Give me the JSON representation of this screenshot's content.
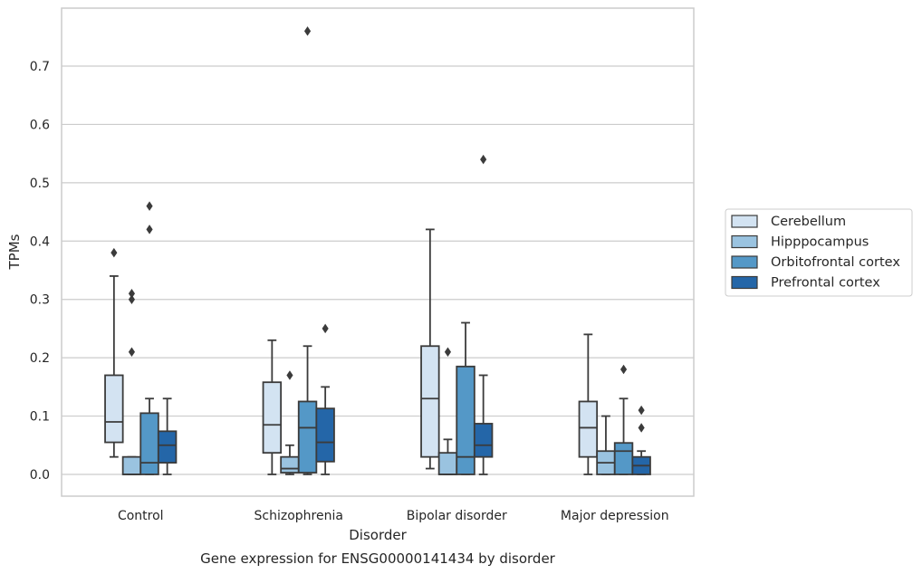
{
  "chart_data": {
    "type": "box",
    "title": "",
    "caption": "Gene expression for ENSG00000141434 by disorder",
    "xlabel": "Disorder",
    "ylabel": "TPMs",
    "ylim": [
      -0.037,
      0.8
    ],
    "yticks": [
      "0.0",
      "0.1",
      "0.2",
      "0.3",
      "0.4",
      "0.5",
      "0.6",
      "0.7"
    ],
    "ytick_values": [
      0.0,
      0.1,
      0.2,
      0.3,
      0.4,
      0.5,
      0.6,
      0.7
    ],
    "grid": "horizontal",
    "legend_position": "right",
    "categories": [
      "Control",
      "Schizophrenia",
      "Bipolar disorder",
      "Major depression"
    ],
    "series": [
      {
        "name": "Cerebellum",
        "color": "#d3e3f2",
        "boxes": [
          {
            "whislo": 0.03,
            "q1": 0.055,
            "med": 0.09,
            "q3": 0.17,
            "whishi": 0.34,
            "fliers": [
              0.38
            ]
          },
          {
            "whislo": 0.0,
            "q1": 0.037,
            "med": 0.085,
            "q3": 0.158,
            "whishi": 0.23,
            "fliers": []
          },
          {
            "whislo": 0.01,
            "q1": 0.03,
            "med": 0.13,
            "q3": 0.22,
            "whishi": 0.42,
            "fliers": []
          },
          {
            "whislo": 0.0,
            "q1": 0.03,
            "med": 0.08,
            "q3": 0.125,
            "whishi": 0.24,
            "fliers": []
          }
        ]
      },
      {
        "name": "Hipppocampus",
        "color": "#9ac3e0",
        "boxes": [
          {
            "whislo": 0.0,
            "q1": 0.0,
            "med": 0.0,
            "q3": 0.03,
            "whishi": 0.03,
            "fliers": [
              0.21,
              0.3,
              0.31
            ]
          },
          {
            "whislo": 0.0,
            "q1": 0.003,
            "med": 0.01,
            "q3": 0.03,
            "whishi": 0.05,
            "fliers": [
              0.17
            ]
          },
          {
            "whislo": 0.0,
            "q1": 0.0,
            "med": 0.0,
            "q3": 0.037,
            "whishi": 0.06,
            "fliers": [
              0.21
            ]
          },
          {
            "whislo": 0.0,
            "q1": 0.0,
            "med": 0.02,
            "q3": 0.04,
            "whishi": 0.1,
            "fliers": []
          }
        ]
      },
      {
        "name": "Orbitofrontal cortex",
        "color": "#5498c7",
        "boxes": [
          {
            "whislo": 0.0,
            "q1": 0.0,
            "med": 0.02,
            "q3": 0.105,
            "whishi": 0.13,
            "fliers": [
              0.42,
              0.46
            ]
          },
          {
            "whislo": 0.0,
            "q1": 0.003,
            "med": 0.08,
            "q3": 0.125,
            "whishi": 0.22,
            "fliers": [
              0.76
            ]
          },
          {
            "whislo": 0.0,
            "q1": 0.0,
            "med": 0.03,
            "q3": 0.185,
            "whishi": 0.26,
            "fliers": []
          },
          {
            "whislo": 0.0,
            "q1": 0.0,
            "med": 0.04,
            "q3": 0.054,
            "whishi": 0.13,
            "fliers": [
              0.18
            ]
          }
        ]
      },
      {
        "name": "Prefrontal cortex",
        "color": "#2466a8",
        "boxes": [
          {
            "whislo": 0.0,
            "q1": 0.02,
            "med": 0.05,
            "q3": 0.074,
            "whishi": 0.13,
            "fliers": []
          },
          {
            "whislo": 0.0,
            "q1": 0.022,
            "med": 0.055,
            "q3": 0.113,
            "whishi": 0.15,
            "fliers": [
              0.25
            ]
          },
          {
            "whislo": 0.0,
            "q1": 0.03,
            "med": 0.05,
            "q3": 0.087,
            "whishi": 0.17,
            "fliers": [
              0.54
            ]
          },
          {
            "whislo": 0.0,
            "q1": 0.0,
            "med": 0.015,
            "q3": 0.03,
            "whishi": 0.04,
            "fliers": [
              0.08,
              0.11
            ]
          }
        ]
      }
    ]
  }
}
